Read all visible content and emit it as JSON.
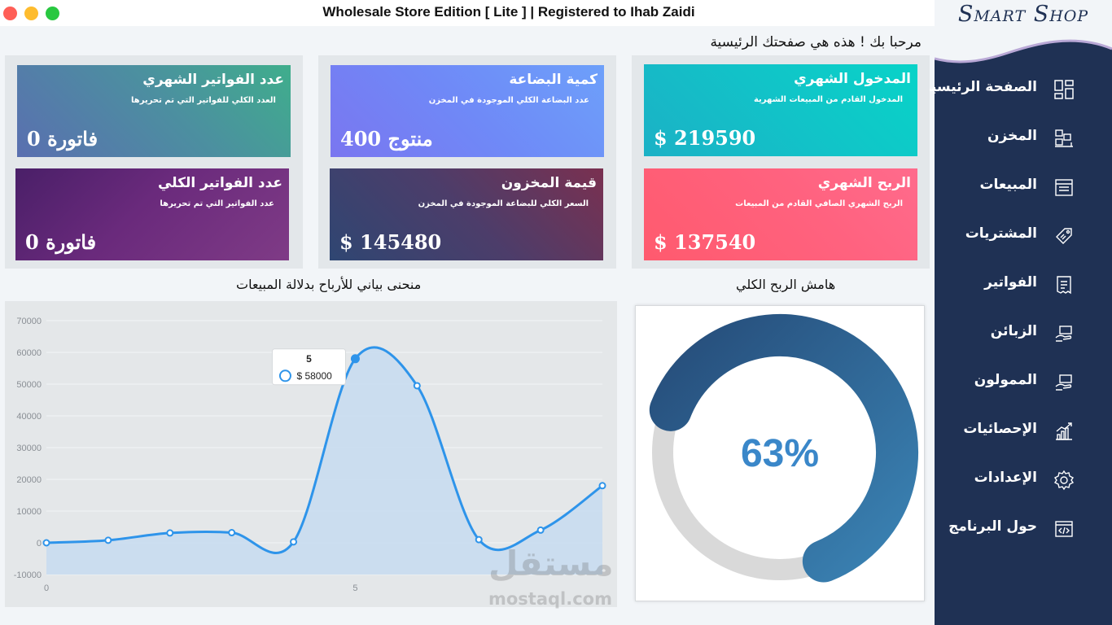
{
  "window": {
    "title": "Wholesale Store Edition [ Lite ] | Registered to Ihab Zaidi",
    "controls": {
      "close_color": "#ff5f57",
      "minimize_color": "#febc2e",
      "maximize_color": "#28c840"
    }
  },
  "sidebar": {
    "logo": "Smart Shop",
    "items": [
      {
        "label": "الصفحة الرئيسية",
        "icon": "dashboard-icon"
      },
      {
        "label": "المخزن",
        "icon": "warehouse-icon"
      },
      {
        "label": "المبيعات",
        "icon": "sales-icon"
      },
      {
        "label": "المشتريات",
        "icon": "purchases-icon"
      },
      {
        "label": "الفواتير",
        "icon": "invoice-icon"
      },
      {
        "label": "الزبائن",
        "icon": "customers-icon"
      },
      {
        "label": "الممولون",
        "icon": "suppliers-icon"
      },
      {
        "label": "الإحصائيات",
        "icon": "statistics-icon"
      },
      {
        "label": "الإعدادات",
        "icon": "settings-icon"
      },
      {
        "label": "حول البرنامج",
        "icon": "about-icon"
      }
    ]
  },
  "welcome": "مرحبا بك ! هذه هي صفحتك الرئيسية",
  "cards": {
    "monthly_invoices": {
      "title": "عدد الفواتير الشهري",
      "subtitle": "العدد الكلي للفواتير التي تم تحريرها",
      "value": "0 فاتورة"
    },
    "product_quantity": {
      "title": "كمية البضاعة",
      "subtitle": "عدد البضاعة الكلي الموجودة في المخزن",
      "value": "400 منتوج"
    },
    "monthly_income": {
      "title": "المدخول الشهري",
      "subtitle": "المدخول القادم من المبيعات الشهرية",
      "value": "$ 219590"
    },
    "total_invoices": {
      "title": "عدد الفواتير الكلي",
      "subtitle": "عدد الفواتير التي تم تحريرها",
      "value": "0 فاتورة"
    },
    "stock_value": {
      "title": "قيمة المخزون",
      "subtitle": "السعر الكلي للبضاعة الموجودة في المخزن",
      "value": "$ 145480"
    },
    "monthly_profit": {
      "title": "الربح الشهري",
      "subtitle": "الربح الشهري الصافي القادم من المبيعات",
      "value": "$ 137540"
    }
  },
  "profit_section_title": "منحنى بياني للأرباح بدلالة المبيعات",
  "margin_section_title": "هامش الربح الكلي",
  "gauge": {
    "percent": 63,
    "label": "63%",
    "track_color": "#d9d9d9",
    "fill_color_start": "#264d7a",
    "fill_color_end": "#3a82b3"
  },
  "tooltip": {
    "title": "5",
    "value": "$ 58000"
  },
  "watermark": {
    "arabic": "مستقل",
    "latin": "mostaql.com"
  },
  "chart_data": {
    "type": "area",
    "x": [
      0,
      1,
      2,
      3,
      4,
      5,
      6,
      7,
      8,
      9
    ],
    "values": [
      0,
      800,
      3100,
      3200,
      300,
      58000,
      49500,
      1000,
      4000,
      18000
    ],
    "xticks": [
      "0",
      "5"
    ],
    "yticks": [
      "70000",
      "60000",
      "50000",
      "40000",
      "30000",
      "20000",
      "10000",
      "0",
      "-10000"
    ],
    "ylim": [
      -10000,
      70000
    ],
    "xlim": [
      0,
      9
    ],
    "grid": true,
    "line_color": "#2e94ea",
    "fill_color": "#c8dcef"
  }
}
